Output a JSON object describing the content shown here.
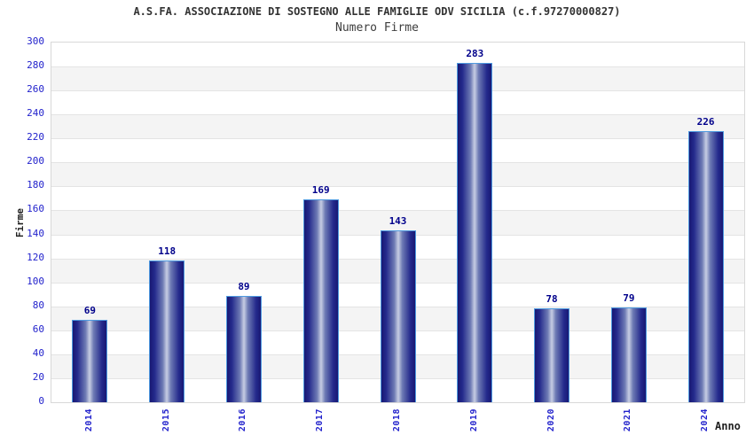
{
  "header": {
    "title": "A.S.FA. ASSOCIAZIONE DI SOSTEGNO ALLE FAMIGLIE ODV SICILIA (c.f.97270000827)",
    "subtitle": "Numero Firme"
  },
  "chart_data": {
    "type": "bar",
    "title": "A.S.FA. ASSOCIAZIONE DI SOSTEGNO ALLE FAMIGLIE ODV SICILIA (c.f.97270000827)",
    "subtitle": "Numero Firme",
    "categories": [
      "2014",
      "2015",
      "2016",
      "2017",
      "2018",
      "2019",
      "2020",
      "2021",
      "2024"
    ],
    "values": [
      69,
      118,
      89,
      169,
      143,
      283,
      78,
      79,
      226
    ],
    "xlabel": "Anno",
    "ylabel": "Firme",
    "ylim": [
      0,
      300
    ],
    "ytick_step": 20,
    "grid": true,
    "legend": false,
    "colors": {
      "bar_edge_dark": "#181873",
      "bar_highlight": "#c7cde3",
      "bar_border": "#4e9ae0",
      "tick_label": "#2222cc",
      "value_label": "#00008b",
      "band_fill": "#f4f4f4",
      "gridline": "#e4e4e4",
      "title_text": "#333333"
    }
  }
}
